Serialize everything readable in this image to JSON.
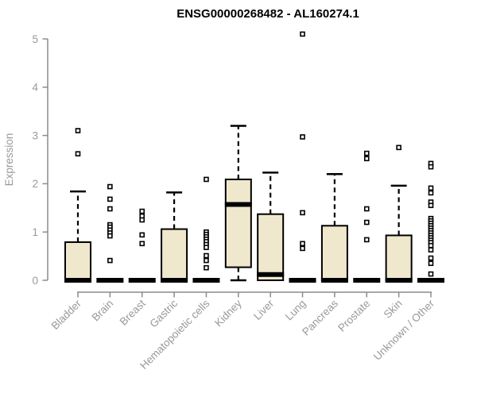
{
  "chart_data": {
    "type": "boxplot",
    "title": "ENSG00000268482 - AL160274.1",
    "ylabel": "Expression",
    "xlabel": "",
    "ylim": [
      0,
      5
    ],
    "yticks": [
      0,
      1,
      2,
      3,
      4,
      5
    ],
    "grid": false,
    "legend": "none",
    "categories": [
      "Bladder",
      "Brain",
      "Breast",
      "Gastric",
      "Hematopoietic cells",
      "Kidney",
      "Liver",
      "Lung",
      "Pancreas",
      "Prostate",
      "Skin",
      "Unknown / Other"
    ],
    "boxes": [
      {
        "category": "Bladder",
        "whisker_low": 0,
        "q1": 0,
        "median": 0,
        "q3": 0.79,
        "whisker_high": 1.84,
        "outliers": [
          2.62,
          3.1
        ]
      },
      {
        "category": "Brain",
        "whisker_low": 0,
        "q1": 0,
        "median": 0,
        "q3": 0,
        "whisker_high": 0,
        "outliers": [
          1.94,
          1.68,
          1.48,
          1.15,
          1.1,
          1.04,
          0.98,
          0.92,
          0.41
        ]
      },
      {
        "category": "Breast",
        "whisker_low": 0,
        "q1": 0,
        "median": 0,
        "q3": 0,
        "whisker_high": 0,
        "outliers": [
          1.43,
          1.33,
          1.25,
          0.94,
          0.76
        ]
      },
      {
        "category": "Gastric",
        "whisker_low": 0,
        "q1": 0,
        "median": 0,
        "q3": 1.06,
        "whisker_high": 1.82,
        "outliers": []
      },
      {
        "category": "Hematopoietic cells",
        "whisker_low": 0,
        "q1": 0,
        "median": 0,
        "q3": 0,
        "whisker_high": 0,
        "outliers": [
          2.09,
          1.0,
          0.95,
          0.9,
          0.85,
          0.8,
          0.74,
          0.68,
          0.51,
          0.41,
          0.26
        ]
      },
      {
        "category": "Kidney",
        "whisker_low": 0,
        "q1": 0.27,
        "median": 1.57,
        "q3": 2.09,
        "whisker_high": 3.2,
        "outliers": []
      },
      {
        "category": "Liver",
        "whisker_low": 0,
        "q1": 0,
        "median": 0.12,
        "q3": 1.37,
        "whisker_high": 2.23,
        "outliers": []
      },
      {
        "category": "Lung",
        "whisker_low": 0,
        "q1": 0,
        "median": 0,
        "q3": 0,
        "whisker_high": 0,
        "outliers": [
          5.1,
          2.97,
          1.4,
          0.76,
          0.66
        ]
      },
      {
        "category": "Pancreas",
        "whisker_low": 0,
        "q1": 0,
        "median": 0,
        "q3": 1.13,
        "whisker_high": 2.2,
        "outliers": []
      },
      {
        "category": "Prostate",
        "whisker_low": 0,
        "q1": 0,
        "median": 0,
        "q3": 0,
        "whisker_high": 0,
        "outliers": [
          2.63,
          2.52,
          1.48,
          1.2,
          0.84
        ]
      },
      {
        "category": "Skin",
        "whisker_low": 0,
        "q1": 0,
        "median": 0,
        "q3": 0.93,
        "whisker_high": 1.96,
        "outliers": [
          2.75
        ]
      },
      {
        "category": "Unknown / Other",
        "whisker_low": 0,
        "q1": 0,
        "median": 0,
        "q3": 0,
        "whisker_high": 0,
        "outliers": [
          2.42,
          2.35,
          1.91,
          1.81,
          1.62,
          1.55,
          1.28,
          1.23,
          1.18,
          1.13,
          1.08,
          1.03,
          0.98,
          0.93,
          0.88,
          0.83,
          0.78,
          0.72,
          0.63,
          0.46,
          0.35,
          0.13
        ]
      }
    ],
    "colors": {
      "box_fill": "#EFE8CD",
      "box_stroke": "#000000",
      "median": "#000000",
      "whisker": "#000000",
      "outlier_stroke": "#000000",
      "outlier_fill": "#FFFFFF",
      "axis": "#8C8C8C",
      "tick_label": "#999999",
      "title": "#000000",
      "background": "#FFFFFF"
    }
  }
}
